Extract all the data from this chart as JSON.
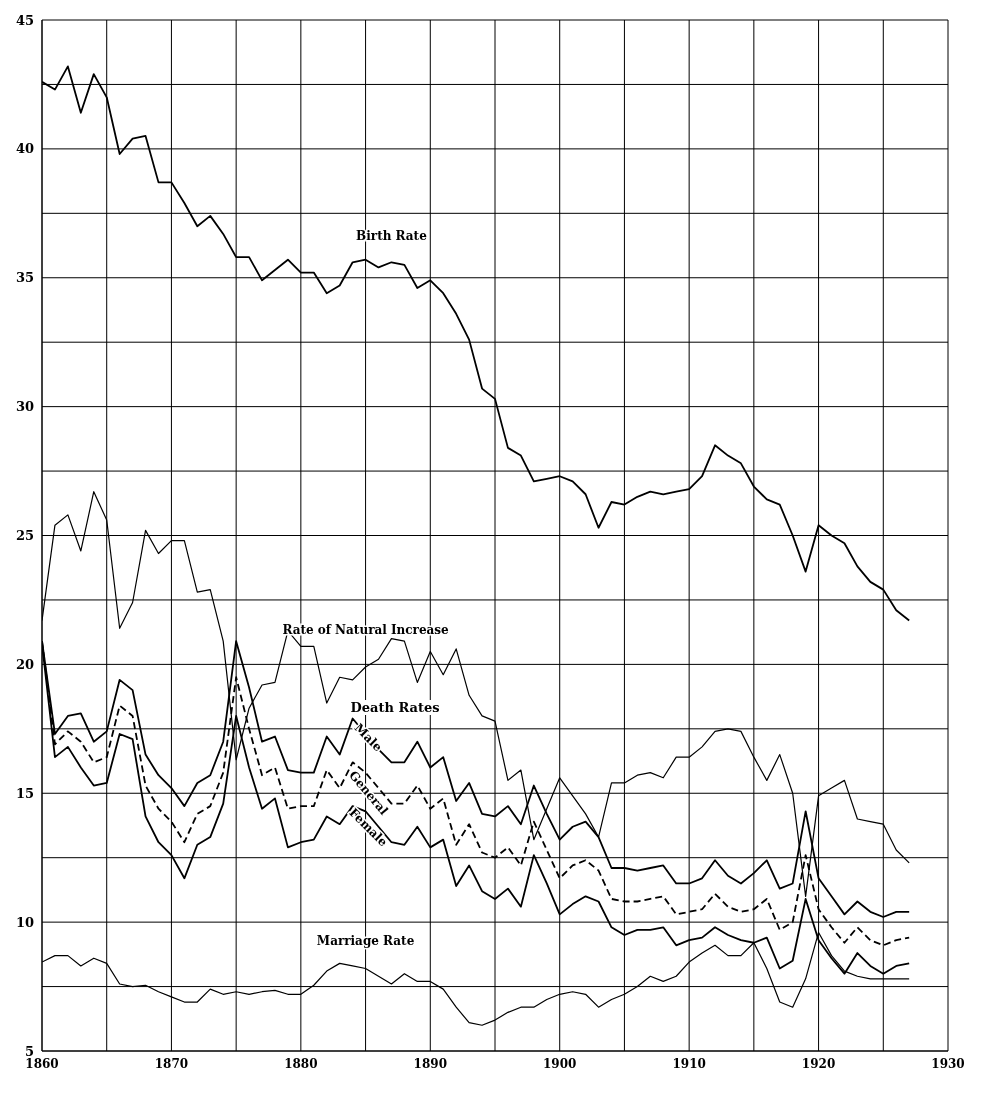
{
  "chart_data": {
    "type": "line",
    "x": [
      1860,
      1861,
      1862,
      1863,
      1864,
      1865,
      1866,
      1867,
      1868,
      1869,
      1870,
      1871,
      1872,
      1873,
      1874,
      1875,
      1876,
      1877,
      1878,
      1879,
      1880,
      1881,
      1882,
      1883,
      1884,
      1885,
      1886,
      1887,
      1888,
      1889,
      1890,
      1891,
      1892,
      1893,
      1894,
      1895,
      1896,
      1897,
      1898,
      1899,
      1900,
      1901,
      1902,
      1903,
      1904,
      1905,
      1906,
      1907,
      1908,
      1909,
      1910,
      1911,
      1912,
      1913,
      1914,
      1915,
      1916,
      1917,
      1918,
      1919,
      1920,
      1921,
      1922,
      1923,
      1924,
      1925,
      1926,
      1927
    ],
    "series": [
      {
        "name": "Birth Rate",
        "color": "#000000",
        "line_style": "solid",
        "values": [
          42.6,
          42.3,
          43.2,
          41.4,
          42.9,
          42.0,
          39.8,
          40.4,
          40.5,
          38.7,
          38.7,
          37.9,
          37.0,
          37.4,
          36.7,
          35.8,
          35.8,
          34.9,
          35.3,
          35.7,
          35.2,
          35.2,
          34.4,
          34.7,
          35.6,
          35.7,
          35.4,
          35.6,
          35.5,
          34.6,
          34.9,
          34.4,
          33.6,
          32.6,
          30.7,
          30.3,
          28.4,
          28.1,
          27.1,
          27.2,
          27.3,
          27.1,
          26.6,
          25.3,
          26.3,
          26.2,
          26.5,
          26.7,
          26.6,
          26.7,
          26.8,
          27.3,
          28.5,
          28.1,
          27.8,
          26.9,
          26.4,
          26.2,
          25.0,
          23.6,
          25.4,
          25.0,
          24.7,
          23.8,
          23.2,
          22.9,
          22.1,
          21.7
        ]
      },
      {
        "name": "Rate of Natural Increase",
        "color": "#000000",
        "line_style": "solid",
        "values": [
          21.7,
          25.4,
          25.8,
          24.4,
          26.7,
          25.6,
          21.4,
          22.4,
          25.2,
          24.3,
          24.8,
          24.8,
          22.8,
          22.9,
          20.9,
          16.3,
          18.3,
          19.2,
          19.3,
          21.3,
          20.7,
          20.7,
          18.5,
          19.5,
          19.4,
          19.9,
          20.2,
          21.0,
          20.9,
          19.3,
          20.5,
          19.6,
          20.6,
          18.8,
          18.0,
          17.8,
          15.5,
          15.9,
          13.2,
          14.4,
          15.6,
          14.9,
          14.2,
          13.3,
          15.4,
          15.4,
          15.7,
          15.8,
          15.6,
          16.4,
          16.4,
          16.8,
          17.4,
          17.5,
          17.4,
          16.4,
          15.5,
          16.5,
          15.0,
          11.0,
          14.9,
          15.2,
          15.5,
          14.0,
          13.9,
          13.8,
          12.8,
          12.3
        ]
      },
      {
        "name": "Male",
        "color": "#000000",
        "line_style": "solid",
        "values": [
          20.9,
          17.3,
          18.0,
          18.1,
          17.0,
          17.4,
          19.4,
          19.0,
          16.5,
          15.7,
          15.2,
          14.5,
          15.4,
          15.7,
          17.0,
          20.9,
          19.1,
          17.0,
          17.2,
          15.9,
          15.8,
          15.8,
          17.2,
          16.5,
          17.9,
          17.3,
          16.7,
          16.2,
          16.2,
          17.0,
          16.0,
          16.4,
          14.7,
          15.4,
          14.2,
          14.1,
          14.5,
          13.8,
          15.3,
          14.2,
          13.2,
          13.7,
          13.9,
          13.3,
          12.1,
          12.1,
          12.0,
          12.1,
          12.2,
          11.5,
          11.5,
          11.7,
          12.4,
          11.8,
          11.5,
          11.9,
          12.4,
          11.3,
          11.5,
          14.3,
          11.7,
          11.0,
          10.3,
          10.8,
          10.4,
          10.2,
          10.4,
          10.4
        ]
      },
      {
        "name": "General",
        "color": "#000000",
        "line_style": "dashed",
        "values": [
          20.9,
          16.9,
          17.4,
          17.0,
          16.2,
          16.4,
          18.4,
          18.0,
          15.3,
          14.4,
          13.9,
          13.1,
          14.2,
          14.5,
          15.8,
          19.5,
          17.5,
          15.7,
          16.0,
          14.4,
          14.5,
          14.5,
          15.9,
          15.2,
          16.2,
          15.8,
          15.2,
          14.6,
          14.6,
          15.3,
          14.4,
          14.8,
          13.0,
          13.8,
          12.7,
          12.5,
          12.9,
          12.2,
          13.9,
          12.8,
          11.7,
          12.2,
          12.4,
          12.0,
          10.9,
          10.8,
          10.8,
          10.9,
          11.0,
          10.3,
          10.4,
          10.5,
          11.1,
          10.6,
          10.4,
          10.5,
          10.9,
          9.7,
          10.0,
          12.6,
          10.5,
          9.8,
          9.2,
          9.8,
          9.3,
          9.1,
          9.3,
          9.4
        ]
      },
      {
        "name": "Female",
        "color": "#000000",
        "line_style": "solid",
        "values": [
          20.8,
          16.4,
          16.8,
          16.0,
          15.3,
          15.4,
          17.3,
          17.1,
          14.1,
          13.1,
          12.6,
          11.7,
          13.0,
          13.3,
          14.6,
          18.0,
          16.0,
          14.4,
          14.8,
          12.9,
          13.1,
          13.2,
          14.1,
          13.8,
          14.5,
          14.3,
          13.7,
          13.1,
          13.0,
          13.7,
          12.9,
          13.2,
          11.4,
          12.2,
          11.2,
          10.9,
          11.3,
          10.6,
          12.6,
          11.5,
          10.3,
          10.7,
          11.0,
          10.8,
          9.8,
          9.5,
          9.7,
          9.7,
          9.8,
          9.1,
          9.3,
          9.4,
          9.8,
          9.5,
          9.3,
          9.2,
          9.4,
          8.2,
          8.5,
          10.9,
          9.3,
          8.6,
          8.0,
          8.8,
          8.3,
          8.0,
          8.3,
          8.4
        ]
      },
      {
        "name": "Marriage Rate",
        "color": "#000000",
        "line_style": "solid",
        "values": [
          8.45,
          8.7,
          8.7,
          8.3,
          8.6,
          8.4,
          7.6,
          7.5,
          7.55,
          7.3,
          7.1,
          6.9,
          6.9,
          7.4,
          7.2,
          7.3,
          7.2,
          7.3,
          7.35,
          7.2,
          7.2,
          7.55,
          8.1,
          8.4,
          8.3,
          8.2,
          7.9,
          7.6,
          8.0,
          7.7,
          7.7,
          7.4,
          6.7,
          6.1,
          6.0,
          6.2,
          6.5,
          6.7,
          6.7,
          7.0,
          7.2,
          7.3,
          7.2,
          6.7,
          7.0,
          7.2,
          7.5,
          7.9,
          7.7,
          7.9,
          8.45,
          8.8,
          9.1,
          8.7,
          8.7,
          9.2,
          8.2,
          6.9,
          6.7,
          7.8,
          9.6,
          8.7,
          8.1,
          7.9,
          7.8,
          7.8,
          7.8,
          7.8
        ]
      }
    ],
    "annotations": [
      "Death Rates"
    ],
    "xlim": [
      1860,
      1930
    ],
    "xticks": [
      1860,
      {
        "value": 1865,
        "label": null
      },
      1870,
      {
        "value": 1875,
        "label": null
      },
      1880,
      {
        "value": 1885,
        "label": null
      },
      1890,
      {
        "value": 1895,
        "label": null
      },
      1900,
      {
        "value": 1905,
        "label": null
      },
      1910,
      {
        "value": 1915,
        "label": null
      },
      1920,
      {
        "value": 1925,
        "label": null
      },
      1930
    ],
    "ylim": [
      5,
      45
    ],
    "yticks": [
      5,
      {
        "value": 7.5,
        "label": null
      },
      10,
      {
        "value": 12.5,
        "label": null
      },
      15,
      {
        "value": 17.5,
        "label": null
      },
      20,
      {
        "value": 22.5,
        "label": null
      },
      25,
      {
        "value": 27.5,
        "label": null
      },
      30,
      {
        "value": 32.5,
        "label": null
      },
      35,
      {
        "value": 37.5,
        "label": null
      },
      40,
      {
        "value": 42.5,
        "label": null
      },
      45
    ],
    "grid": true,
    "marker": "none"
  }
}
